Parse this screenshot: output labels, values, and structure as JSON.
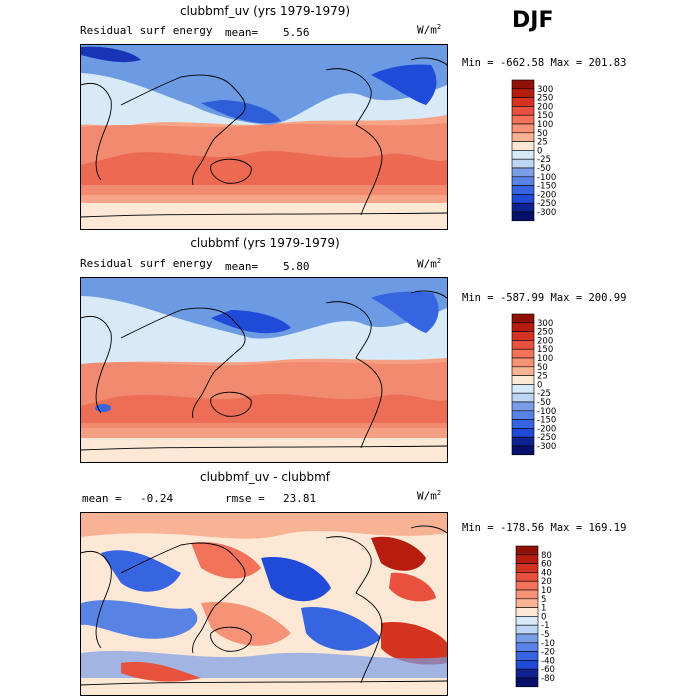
{
  "season": "DJF",
  "colors": {
    "base_cool": [
      "#d8e9f8",
      "#bcd6f3",
      "#9bbcec",
      "#7a9ee6",
      "#5882e4",
      "#3765e2",
      "#1f4bd8",
      "#1735b6",
      "#0e2291",
      "#06106a"
    ],
    "base_warm": [
      "#fde8d6",
      "#fbcfb3",
      "#f8b294",
      "#f69376",
      "#f2725a",
      "#e8513d",
      "#d3331f",
      "#b71d0f",
      "#8f1206"
    ],
    "ocean_cool": "#5d8fe0",
    "land": "#d8e9f8",
    "coast": "#000000"
  },
  "chart_data": [
    {
      "type": "heatmap",
      "title": "clubbmf_uv (yrs 1979-1979)",
      "left_label": "Residual surf energy",
      "stat_label": "mean=",
      "stat_value": "5.56",
      "units": "W/m",
      "units_sup": "2",
      "min_label": "Min = ",
      "min_value": "-662.58",
      "max_label": "Max = ",
      "max_value": "201.83",
      "colorbar_labels": [
        "300",
        "250",
        "200",
        "150",
        "100",
        "50",
        "25",
        "0",
        "-25",
        "-50",
        "-100",
        "-150",
        "-200",
        "-250",
        "-300"
      ]
    },
    {
      "type": "heatmap",
      "title": "clubbmf (yrs 1979-1979)",
      "left_label": "Residual surf energy",
      "stat_label": "mean=",
      "stat_value": "5.80",
      "units": "W/m",
      "units_sup": "2",
      "min_label": "Min = ",
      "min_value": "-587.99",
      "max_label": "Max = ",
      "max_value": "200.99",
      "colorbar_labels": [
        "300",
        "250",
        "200",
        "150",
        "100",
        "50",
        "25",
        "0",
        "-25",
        "-50",
        "-100",
        "-150",
        "-200",
        "-250",
        "-300"
      ]
    },
    {
      "type": "heatmap",
      "title": "clubbmf_uv - clubbmf",
      "left_label": "mean =",
      "left_value": "-0.24",
      "stat_label": "rmse =",
      "stat_value": "23.81",
      "units": "W/m",
      "units_sup": "2",
      "min_label": "Min = ",
      "min_value": "-178.56",
      "max_label": "Max = ",
      "max_value": "169.19",
      "colorbar_labels": [
        "80",
        "60",
        "40",
        "20",
        "10",
        "5",
        "1",
        "0",
        "-1",
        "-5",
        "-10",
        "-20",
        "-40",
        "-60",
        "-80"
      ]
    }
  ]
}
